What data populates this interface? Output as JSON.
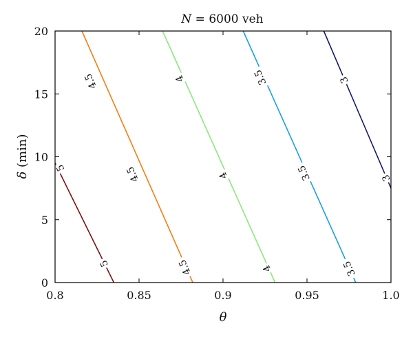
{
  "chart_data": {
    "type": "line",
    "title_prefix": "N",
    "title_rest": " = 6000 veh",
    "xlabel": "θ",
    "ylabel_symbol": "δ",
    "ylabel_rest": " (min)",
    "xlim": [
      0.8,
      1.0
    ],
    "ylim": [
      0,
      20
    ],
    "xticks": [
      0.8,
      0.85,
      0.9,
      0.95,
      1.0
    ],
    "xtick_labels": [
      "0.8",
      "0.85",
      "0.9",
      "0.95",
      "1.0"
    ],
    "yticks": [
      0,
      5,
      10,
      15,
      20
    ],
    "ytick_labels": [
      "0",
      "5",
      "10",
      "15",
      "20"
    ],
    "grid": false,
    "series": [
      {
        "name": "5",
        "color": "#7b1113",
        "x": [
          0.8,
          0.835
        ],
        "y": [
          9.5,
          0
        ],
        "labels": [
          {
            "x": 0.803,
            "y": 9.1,
            "text": "5"
          },
          {
            "x": 0.829,
            "y": 1.5,
            "text": "5"
          }
        ]
      },
      {
        "name": "4.5",
        "color": "#f07f13",
        "x": [
          0.816,
          0.882
        ],
        "y": [
          20,
          0
        ],
        "labels": [
          {
            "x": 0.821,
            "y": 16.0,
            "text": "4.5"
          },
          {
            "x": 0.846,
            "y": 8.6,
            "text": "4.5"
          },
          {
            "x": 0.877,
            "y": 1.2,
            "text": "4.5"
          }
        ]
      },
      {
        "name": "4",
        "color": "#8be87c",
        "x": [
          0.864,
          0.931
        ],
        "y": [
          20,
          0
        ],
        "labels": [
          {
            "x": 0.874,
            "y": 16.2,
            "text": "4"
          },
          {
            "x": 0.9,
            "y": 8.5,
            "text": "4"
          },
          {
            "x": 0.926,
            "y": 1.1,
            "text": "4"
          }
        ]
      },
      {
        "name": "3.5",
        "color": "#1a9fe0",
        "x": [
          0.912,
          0.979
        ],
        "y": [
          20,
          0
        ],
        "labels": [
          {
            "x": 0.922,
            "y": 16.3,
            "text": "3.5"
          },
          {
            "x": 0.948,
            "y": 8.7,
            "text": "3.5"
          },
          {
            "x": 0.975,
            "y": 1.1,
            "text": "3.5"
          }
        ]
      },
      {
        "name": "3",
        "color": "#161a6e",
        "x": [
          0.96,
          1.0
        ],
        "y": [
          20,
          7.5
        ],
        "labels": [
          {
            "x": 0.972,
            "y": 16.1,
            "text": "3"
          },
          {
            "x": 0.997,
            "y": 8.3,
            "text": "3"
          }
        ]
      }
    ]
  }
}
